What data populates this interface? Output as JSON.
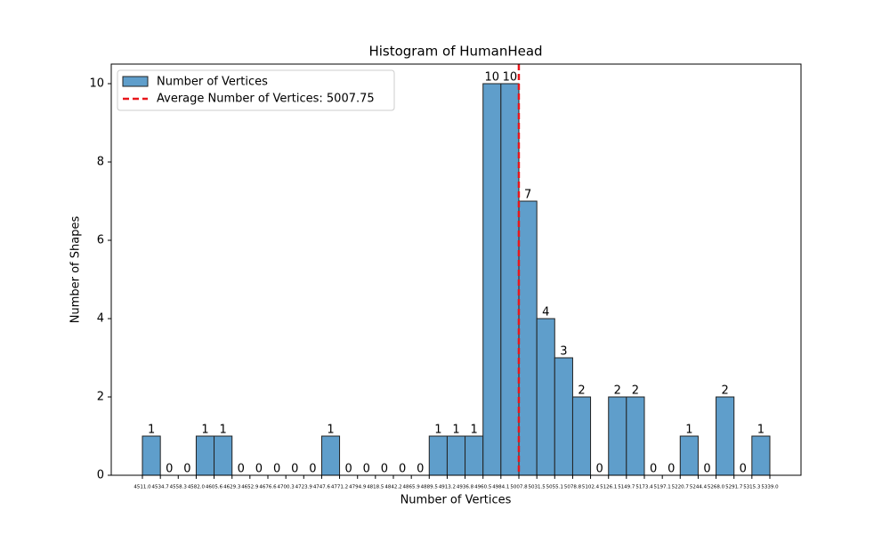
{
  "chart_data": {
    "type": "histogram",
    "title": "Histogram of HumanHead",
    "xlabel": "Number of Vertices",
    "ylabel": "Number of Shapes",
    "bins": [
      4511.0,
      4534.7,
      4558.3,
      4582.0,
      4605.6,
      4629.3,
      4652.9,
      4676.6,
      4700.3,
      4723.9,
      4747.6,
      4771.2,
      4794.9,
      4818.5,
      4842.2,
      4865.9,
      4889.5,
      4913.2,
      4936.8,
      4960.5,
      4984.1,
      5007.8,
      5031.5,
      5055.1,
      5078.8,
      5102.4,
      5126.1,
      5149.7,
      5173.4,
      5197.1,
      5220.7,
      5244.4,
      5268.0,
      5291.7,
      5315.3,
      5339.0
    ],
    "values": [
      1,
      0,
      0,
      1,
      1,
      0,
      0,
      0,
      0,
      0,
      1,
      0,
      0,
      0,
      0,
      0,
      1,
      1,
      1,
      10,
      10,
      7,
      4,
      3,
      2,
      0,
      2,
      2,
      0,
      0,
      1,
      0,
      2,
      0,
      1
    ],
    "series_name": "Number of Vertices",
    "color": "#5f9ecb",
    "edgecolor": "#222222",
    "average": {
      "value": 5007.75,
      "label": "Average Number of Vertices: 5007.75",
      "color": "#e8161b"
    },
    "xlim": [
      4469.9,
      5380.1
    ],
    "ylim": [
      0,
      10.5
    ],
    "xticks": [
      {
        "value": 4511.0,
        "label": "4511.0"
      },
      {
        "value": 4534.7,
        "label": "4534.7"
      },
      {
        "value": 4558.3,
        "label": "4558.3"
      },
      {
        "value": 4582.0,
        "label": "4582.0"
      },
      {
        "value": 4605.6,
        "label": "4605.6"
      },
      {
        "value": 4629.3,
        "label": "4629.3"
      },
      {
        "value": 4652.9,
        "label": "4652.9"
      },
      {
        "value": 4676.6,
        "label": "4676.6"
      },
      {
        "value": 4700.3,
        "label": "4700.3"
      },
      {
        "value": 4723.9,
        "label": "4723.9"
      },
      {
        "value": 4747.6,
        "label": "4747.6"
      },
      {
        "value": 4771.2,
        "label": "4771.2"
      },
      {
        "value": 4794.9,
        "label": "4794.9"
      },
      {
        "value": 4818.5,
        "label": "4818.5"
      },
      {
        "value": 4842.2,
        "label": "4842.2"
      },
      {
        "value": 4865.9,
        "label": "4865.9"
      },
      {
        "value": 4889.5,
        "label": "4889.5"
      },
      {
        "value": 4913.2,
        "label": "4913.2"
      },
      {
        "value": 4936.8,
        "label": "4936.8"
      },
      {
        "value": 4960.5,
        "label": "4960.5"
      },
      {
        "value": 4984.1,
        "label": "4984.1"
      },
      {
        "value": 5007.8,
        "label": "5007.8"
      },
      {
        "value": 5031.5,
        "label": "5031.5"
      },
      {
        "value": 5055.1,
        "label": "5055.1"
      },
      {
        "value": 5078.8,
        "label": "5078.8"
      },
      {
        "value": 5102.4,
        "label": "5102.4"
      },
      {
        "value": 5126.1,
        "label": "5126.1"
      },
      {
        "value": 5149.7,
        "label": "5149.7"
      },
      {
        "value": 5173.4,
        "label": "5173.4"
      },
      {
        "value": 5197.1,
        "label": "5197.1"
      },
      {
        "value": 5220.7,
        "label": "5220.7"
      },
      {
        "value": 5244.4,
        "label": "5244.4"
      },
      {
        "value": 5268.0,
        "label": "5268.0"
      },
      {
        "value": 5291.7,
        "label": "5291.7"
      },
      {
        "value": 5315.3,
        "label": "5315.3"
      },
      {
        "value": 5339.0,
        "label": "5339.0"
      }
    ],
    "yticks": [
      0,
      2,
      4,
      6,
      8,
      10
    ],
    "legend": "upper left"
  }
}
